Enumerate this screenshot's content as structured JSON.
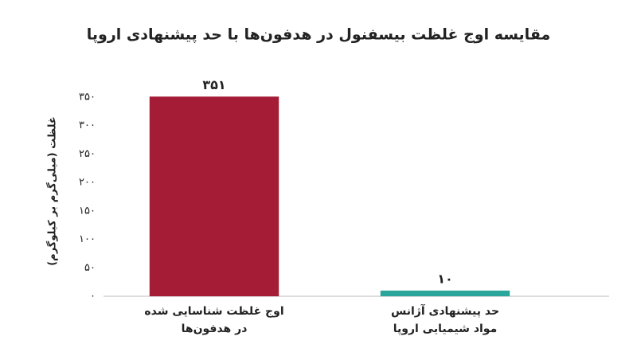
{
  "chart_data": {
    "type": "bar",
    "title": "مقایسه اوج غلظت بیسفنول در هدفون‌ها با حد پیشنهادی اروپا",
    "y_label": "غلظت (میلی‌گرم بر کیلوگرم)",
    "categories": [
      "اوج غلظت شناسایی شده\nدر هدفون‌ها",
      "حد پیشنهادی آژانس\nمواد شیمیایی اروپا"
    ],
    "values": [
      351,
      10
    ],
    "value_labels": [
      "۳۵۱",
      "۱۰"
    ],
    "colors": [
      "#a51c36",
      "#2aa59b"
    ],
    "ylim": [
      0,
      350
    ],
    "yticks": [
      {
        "value": 0,
        "label": "۰"
      },
      {
        "value": 50,
        "label": "۵۰"
      },
      {
        "value": 100,
        "label": "۱۰۰"
      },
      {
        "value": 150,
        "label": "۱۵۰"
      },
      {
        "value": 200,
        "label": "۲۰۰"
      },
      {
        "value": 250,
        "label": "۲۵۰"
      },
      {
        "value": 300,
        "label": "۳۰۰"
      },
      {
        "value": 350,
        "label": "۳۵۰"
      }
    ],
    "grid": false
  }
}
